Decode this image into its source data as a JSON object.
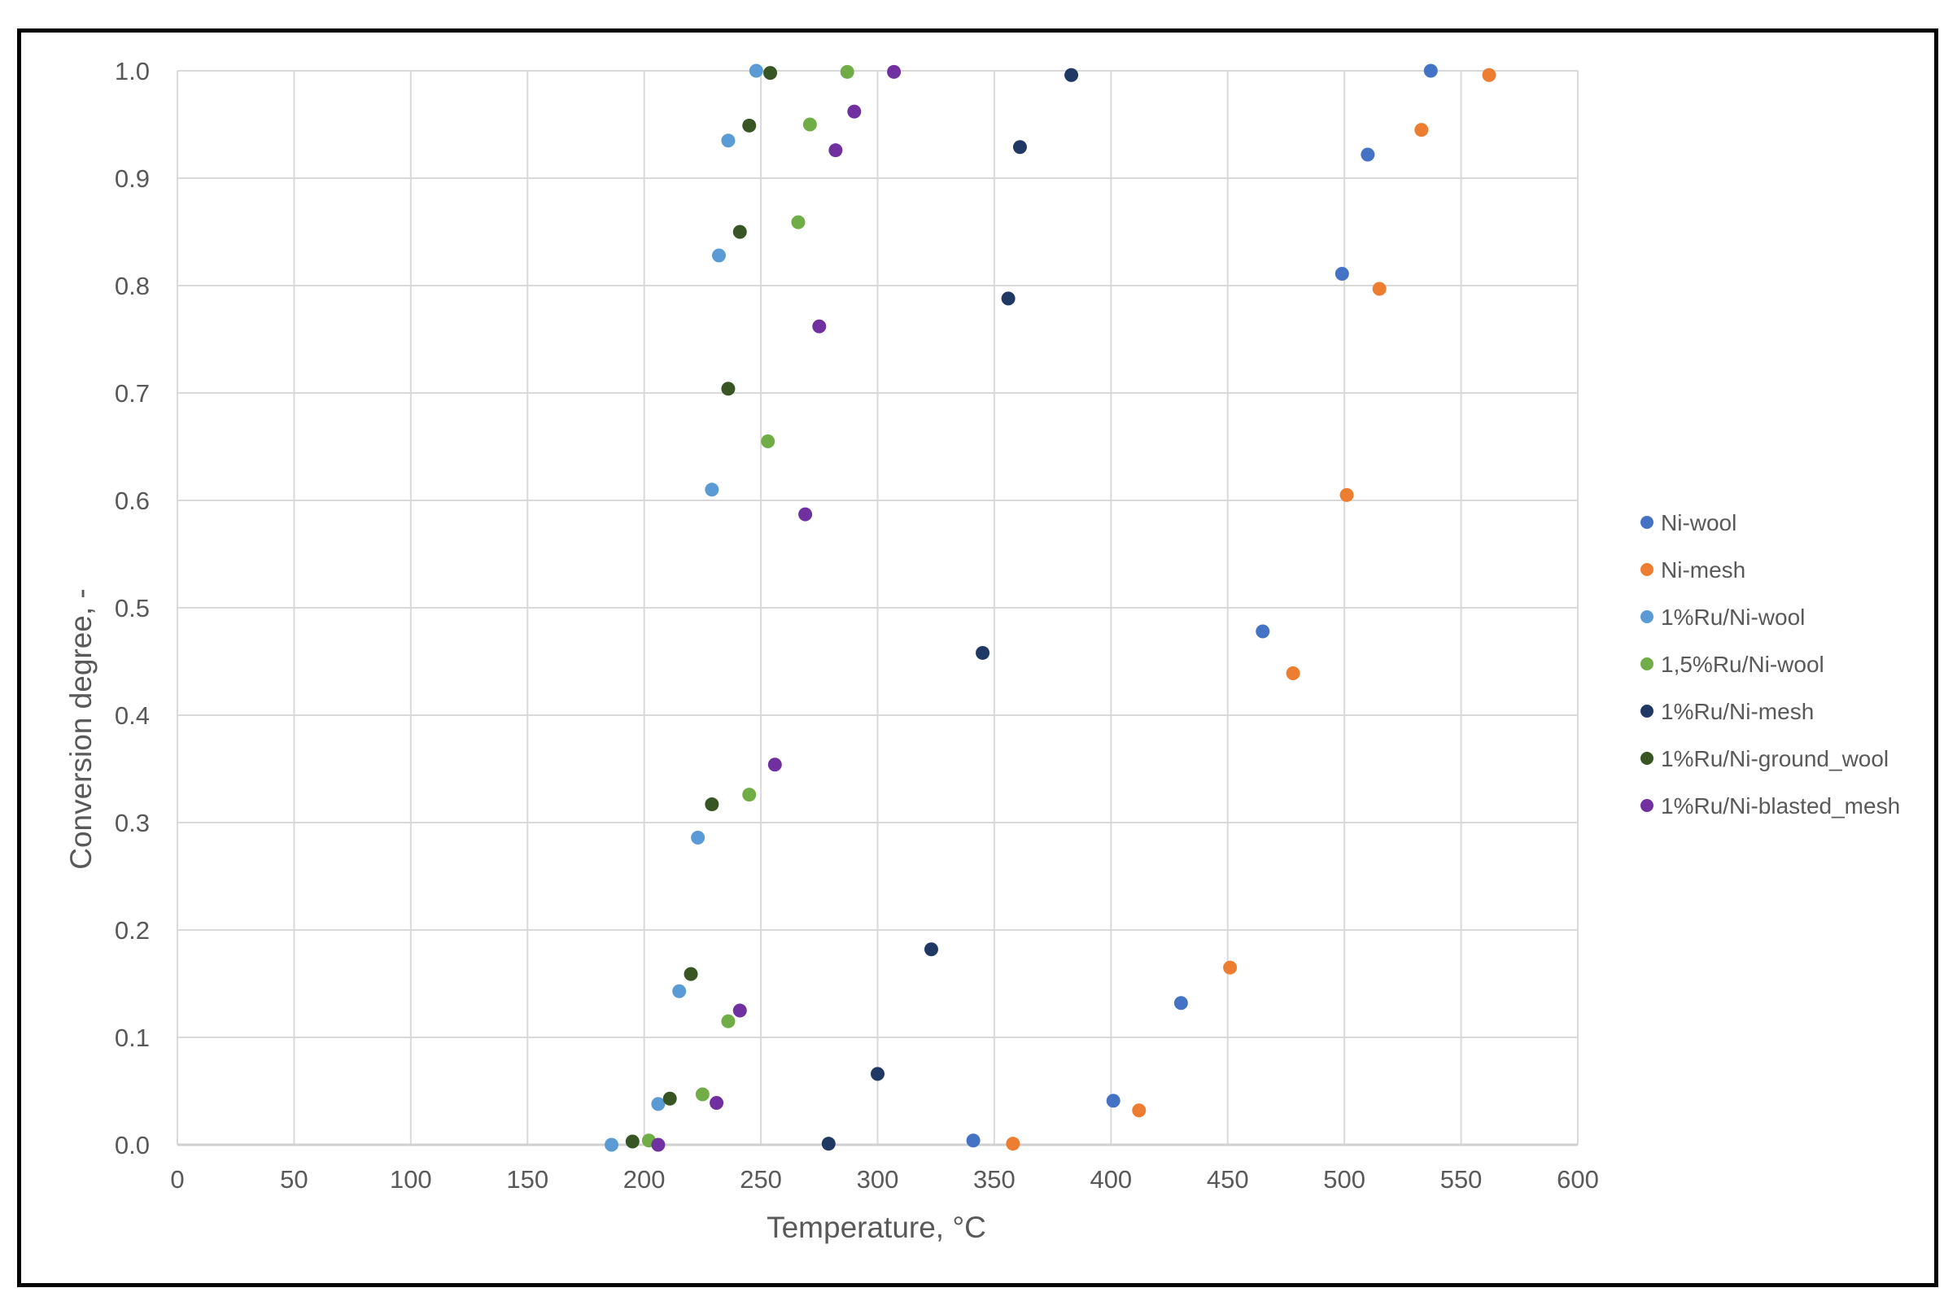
{
  "chart_data": {
    "type": "scatter",
    "xlabel": "Temperature, °C",
    "ylabel": "Conversion degree, -",
    "xlim": [
      0,
      600
    ],
    "ylim": [
      0,
      1.0
    ],
    "x_ticks": [
      "0",
      "50",
      "100",
      "150",
      "200",
      "250",
      "300",
      "350",
      "400",
      "450",
      "500",
      "550",
      "600"
    ],
    "y_ticks": [
      "0.0",
      "0.1",
      "0.2",
      "0.3",
      "0.4",
      "0.5",
      "0.6",
      "0.7",
      "0.8",
      "0.9",
      "1.0"
    ],
    "grid": true,
    "legend_position": "right",
    "series": [
      {
        "name": "Ni-wool",
        "color": "#4472C4",
        "points": [
          [
            341,
            0.004
          ],
          [
            401,
            0.041
          ],
          [
            430,
            0.132
          ],
          [
            465,
            0.478
          ],
          [
            499,
            0.811
          ],
          [
            510,
            0.922
          ],
          [
            537,
            1.0
          ]
        ]
      },
      {
        "name": "Ni-mesh",
        "color": "#ED7D31",
        "points": [
          [
            358,
            0.001
          ],
          [
            412,
            0.032
          ],
          [
            451,
            0.165
          ],
          [
            478,
            0.439
          ],
          [
            501,
            0.605
          ],
          [
            515,
            0.797
          ],
          [
            533,
            0.945
          ],
          [
            562,
            0.996
          ]
        ]
      },
      {
        "name": "1%Ru/Ni-wool",
        "color": "#5B9BD5",
        "points": [
          [
            186,
            0.0
          ],
          [
            206,
            0.038
          ],
          [
            215,
            0.143
          ],
          [
            223,
            0.286
          ],
          [
            229,
            0.61
          ],
          [
            232,
            0.828
          ],
          [
            236,
            0.935
          ],
          [
            248,
            1.0
          ]
        ]
      },
      {
        "name": "1,5%Ru/Ni-wool",
        "color": "#70AD47",
        "points": [
          [
            202,
            0.004
          ],
          [
            225,
            0.047
          ],
          [
            236,
            0.115
          ],
          [
            245,
            0.326
          ],
          [
            253,
            0.655
          ],
          [
            266,
            0.859
          ],
          [
            271,
            0.95
          ],
          [
            287,
            0.999
          ]
        ]
      },
      {
        "name": "1%Ru/Ni-mesh",
        "color": "#203864",
        "points": [
          [
            279,
            0.001
          ],
          [
            300,
            0.066
          ],
          [
            323,
            0.182
          ],
          [
            345,
            0.458
          ],
          [
            356,
            0.788
          ],
          [
            361,
            0.929
          ],
          [
            383,
            0.996
          ]
        ]
      },
      {
        "name": "1%Ru/Ni-ground_wool",
        "color": "#375623",
        "points": [
          [
            195,
            0.003
          ],
          [
            211,
            0.043
          ],
          [
            220,
            0.159
          ],
          [
            229,
            0.317
          ],
          [
            236,
            0.704
          ],
          [
            241,
            0.85
          ],
          [
            245,
            0.949
          ],
          [
            254,
            0.998
          ]
        ]
      },
      {
        "name": "1%Ru/Ni-blasted_mesh",
        "color": "#7030A0",
        "points": [
          [
            206,
            0.0
          ],
          [
            231,
            0.039
          ],
          [
            241,
            0.125
          ],
          [
            256,
            0.354
          ],
          [
            269,
            0.587
          ],
          [
            275,
            0.762
          ],
          [
            282,
            0.926
          ],
          [
            290,
            0.962
          ],
          [
            307,
            0.999
          ]
        ]
      }
    ]
  }
}
